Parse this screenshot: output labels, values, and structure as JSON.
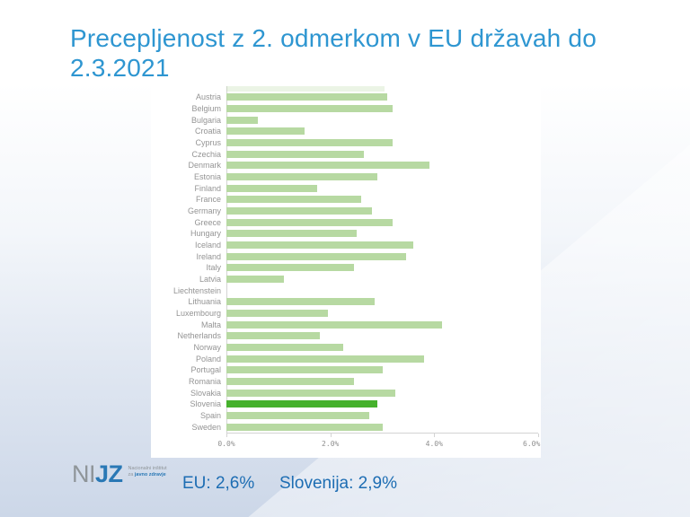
{
  "title": {
    "line1": "Precepljenost z 2. odmerkom v EU državah do",
    "line2": "2.3.2021"
  },
  "colors": {
    "title_blue": "#2e96d1",
    "footer_blue": "#1d6db3",
    "bar_green": "#b7d9a2",
    "bar_highlight_green": "#45b12c",
    "label_gray": "#949494",
    "axis_gray": "#d4d4d4",
    "logo_gray": "#8f9599",
    "logo_blue": "#2978b5"
  },
  "chart_data": {
    "type": "bar",
    "orientation": "horizontal",
    "title": "Precepljenost z 2. odmerkom v EU državah do 2.3.2021",
    "categories": [
      "Austria",
      "Belgium",
      "Bulgaria",
      "Croatia",
      "Cyprus",
      "Czechia",
      "Denmark",
      "Estonia",
      "Finland",
      "France",
      "Germany",
      "Greece",
      "Hungary",
      "Iceland",
      "Ireland",
      "Italy",
      "Latvia",
      "Liechtenstein",
      "Lithuania",
      "Luxembourg",
      "Malta",
      "Netherlands",
      "Norway",
      "Poland",
      "Portugal",
      "Romania",
      "Slovakia",
      "Slovenia",
      "Spain",
      "Sweden"
    ],
    "values": [
      3.1,
      3.2,
      0.6,
      1.5,
      3.2,
      2.65,
      3.9,
      2.9,
      1.75,
      2.6,
      2.8,
      3.2,
      2.5,
      3.6,
      3.45,
      2.45,
      1.1,
      0,
      2.85,
      1.95,
      4.15,
      1.8,
      2.25,
      3.8,
      3.0,
      2.45,
      3.25,
      2.9,
      2.75,
      3.0
    ],
    "value_unit": "%",
    "highlight_category": "Slovenia",
    "clipped_top_bar_value": 3.05,
    "xlim": [
      0,
      6
    ],
    "x_ticks": [
      {
        "value": 0,
        "label": "0.0%"
      },
      {
        "value": 2,
        "label": "2.0%"
      },
      {
        "value": 4,
        "label": "4.0%"
      },
      {
        "value": 6,
        "label": "6.0%"
      }
    ],
    "grid": false,
    "legend": false
  },
  "footer": {
    "eu_label": "EU: 2,6%",
    "slovenia_label": "Slovenija: 2,9%"
  },
  "logo": {
    "ni": "NI",
    "jz": "JZ",
    "sub_line1": "Nacionalni inštitut",
    "sub_line2_prefix": "za ",
    "sub_line2_bold": "javno zdravje"
  }
}
